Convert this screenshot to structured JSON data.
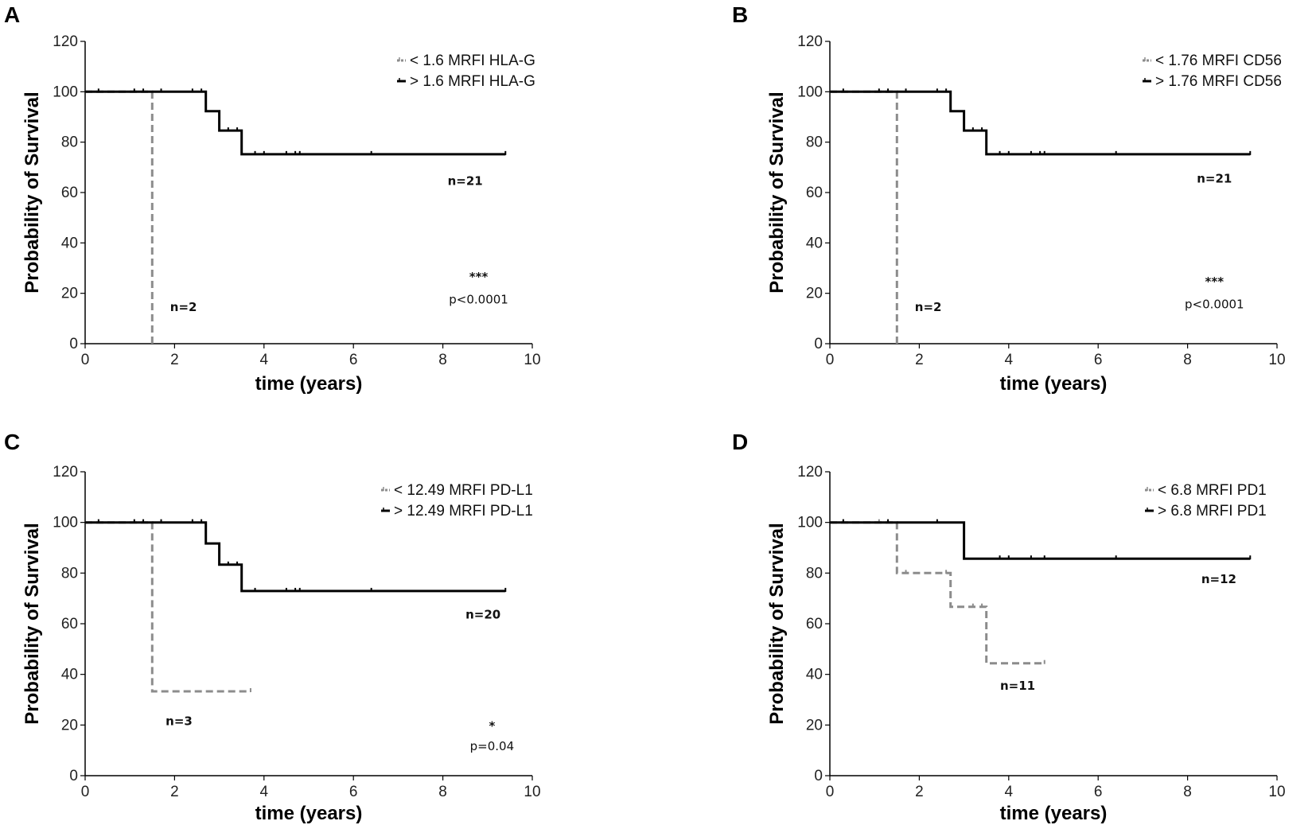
{
  "chart_data": [
    {
      "panel": "A",
      "type": "line",
      "subtype": "kaplan-meier",
      "xlabel": "time (years)",
      "ylabel": "Probability of Survival",
      "xlim": [
        0,
        10
      ],
      "ylim": [
        0,
        120
      ],
      "xticks": [
        0,
        2,
        4,
        6,
        8,
        10
      ],
      "yticks": [
        0,
        20,
        40,
        60,
        80,
        100,
        120
      ],
      "legend_position": "top-right",
      "series": [
        {
          "name": "< 1.6 MRFI HLA-G",
          "color": "#8c8c8c",
          "style": "dashed",
          "steps": [
            [
              0,
              100
            ],
            [
              1.5,
              100
            ],
            [
              1.5,
              0
            ]
          ],
          "censors": []
        },
        {
          "name": "> 1.6 MRFI HLA-G",
          "color": "#000000",
          "style": "solid",
          "steps": [
            [
              0,
              100
            ],
            [
              2.7,
              100
            ],
            [
              2.7,
              92.3
            ],
            [
              3.0,
              92.3
            ],
            [
              3.0,
              84.6
            ],
            [
              3.5,
              84.6
            ],
            [
              3.5,
              75.2
            ],
            [
              9.4,
              75.2
            ]
          ],
          "censors": [
            [
              0.3,
              100
            ],
            [
              1.1,
              100
            ],
            [
              1.3,
              100
            ],
            [
              1.7,
              100
            ],
            [
              2.4,
              100
            ],
            [
              2.6,
              100
            ],
            [
              3.2,
              84.6
            ],
            [
              3.4,
              84.6
            ],
            [
              3.8,
              75.2
            ],
            [
              4.0,
              75.2
            ],
            [
              4.5,
              75.2
            ],
            [
              4.7,
              75.2
            ],
            [
              4.8,
              75.2
            ],
            [
              6.4,
              75.2
            ],
            [
              9.4,
              75.2
            ]
          ]
        }
      ],
      "annotations": [
        {
          "kind": "n",
          "text": "n=21",
          "x": 8.5,
          "y": 63
        },
        {
          "kind": "n",
          "text": "n=2",
          "x": 2.2,
          "y": 13
        },
        {
          "kind": "stars",
          "text": "***",
          "x": 8.8,
          "y": 25
        },
        {
          "kind": "p",
          "text": "p<0.0001",
          "x": 8.8,
          "y": 16
        }
      ]
    },
    {
      "panel": "B",
      "type": "line",
      "subtype": "kaplan-meier",
      "xlabel": "time (years)",
      "ylabel": "Probability of Survival",
      "xlim": [
        0,
        10
      ],
      "ylim": [
        0,
        120
      ],
      "xticks": [
        0,
        2,
        4,
        6,
        8,
        10
      ],
      "yticks": [
        0,
        20,
        40,
        60,
        80,
        100,
        120
      ],
      "legend_position": "top-right",
      "series": [
        {
          "name": "< 1.76 MRFI CD56",
          "color": "#8c8c8c",
          "style": "dashed",
          "steps": [
            [
              0,
              100
            ],
            [
              1.5,
              100
            ],
            [
              1.5,
              0
            ]
          ],
          "censors": []
        },
        {
          "name": "> 1.76 MRFI CD56",
          "color": "#000000",
          "style": "solid",
          "steps": [
            [
              0,
              100
            ],
            [
              2.7,
              100
            ],
            [
              2.7,
              92.3
            ],
            [
              3.0,
              92.3
            ],
            [
              3.0,
              84.6
            ],
            [
              3.5,
              84.6
            ],
            [
              3.5,
              75.2
            ],
            [
              9.4,
              75.2
            ]
          ],
          "censors": [
            [
              0.3,
              100
            ],
            [
              1.1,
              100
            ],
            [
              1.3,
              100
            ],
            [
              1.7,
              100
            ],
            [
              2.4,
              100
            ],
            [
              2.6,
              100
            ],
            [
              3.2,
              84.6
            ],
            [
              3.4,
              84.6
            ],
            [
              3.8,
              75.2
            ],
            [
              4.0,
              75.2
            ],
            [
              4.5,
              75.2
            ],
            [
              4.7,
              75.2
            ],
            [
              4.8,
              75.2
            ],
            [
              6.4,
              75.2
            ],
            [
              9.4,
              75.2
            ]
          ]
        }
      ],
      "annotations": [
        {
          "kind": "n",
          "text": "n=21",
          "x": 8.6,
          "y": 64
        },
        {
          "kind": "n",
          "text": "n=2",
          "x": 2.2,
          "y": 13
        },
        {
          "kind": "stars",
          "text": "***",
          "x": 8.6,
          "y": 23
        },
        {
          "kind": "p",
          "text": "p<0.0001",
          "x": 8.6,
          "y": 14
        }
      ]
    },
    {
      "panel": "C",
      "type": "line",
      "subtype": "kaplan-meier",
      "xlabel": "time (years)",
      "ylabel": "Probability of Survival",
      "xlim": [
        0,
        10
      ],
      "ylim": [
        0,
        120
      ],
      "xticks": [
        0,
        2,
        4,
        6,
        8,
        10
      ],
      "yticks": [
        0,
        20,
        40,
        60,
        80,
        100,
        120
      ],
      "legend_position": "top-right",
      "series": [
        {
          "name": "< 12.49 MRFI PD-L1",
          "color": "#8c8c8c",
          "style": "dashed",
          "steps": [
            [
              0,
              100
            ],
            [
              1.5,
              100
            ],
            [
              1.5,
              33.3
            ],
            [
              3.7,
              33.3
            ]
          ],
          "censors": [
            [
              3.7,
              33.3
            ]
          ]
        },
        {
          "name": "> 12.49 MRFI PD-L1",
          "color": "#000000",
          "style": "solid",
          "steps": [
            [
              0,
              100
            ],
            [
              2.7,
              100
            ],
            [
              2.7,
              91.7
            ],
            [
              3.0,
              91.7
            ],
            [
              3.0,
              83.3
            ],
            [
              3.5,
              83.3
            ],
            [
              3.5,
              72.9
            ],
            [
              9.4,
              72.9
            ]
          ],
          "censors": [
            [
              0.3,
              100
            ],
            [
              1.1,
              100
            ],
            [
              1.3,
              100
            ],
            [
              1.7,
              100
            ],
            [
              2.4,
              100
            ],
            [
              2.6,
              100
            ],
            [
              3.2,
              83.3
            ],
            [
              3.4,
              83.3
            ],
            [
              3.8,
              72.9
            ],
            [
              4.5,
              72.9
            ],
            [
              4.7,
              72.9
            ],
            [
              4.8,
              72.9
            ],
            [
              6.4,
              72.9
            ],
            [
              9.4,
              72.9
            ]
          ]
        }
      ],
      "annotations": [
        {
          "kind": "n",
          "text": "n=20",
          "x": 8.9,
          "y": 62
        },
        {
          "kind": "n",
          "text": "n=3",
          "x": 2.1,
          "y": 20
        },
        {
          "kind": "stars",
          "text": "*",
          "x": 9.1,
          "y": 18
        },
        {
          "kind": "p",
          "text": "p=0.04",
          "x": 9.1,
          "y": 10
        }
      ]
    },
    {
      "panel": "D",
      "type": "line",
      "subtype": "kaplan-meier",
      "xlabel": "time (years)",
      "ylabel": "Probability of Survival",
      "xlim": [
        0,
        10
      ],
      "ylim": [
        0,
        120
      ],
      "xticks": [
        0,
        2,
        4,
        6,
        8,
        10
      ],
      "yticks": [
        0,
        20,
        40,
        60,
        80,
        100,
        120
      ],
      "legend_position": "top-right",
      "series": [
        {
          "name": "< 6.8 MRFI PD1",
          "color": "#8c8c8c",
          "style": "dashed",
          "steps": [
            [
              0,
              100
            ],
            [
              1.5,
              100
            ],
            [
              1.5,
              80
            ],
            [
              2.7,
              80
            ],
            [
              2.7,
              66.7
            ],
            [
              3.5,
              66.7
            ],
            [
              3.5,
              44.4
            ],
            [
              4.8,
              44.4
            ]
          ],
          "censors": [
            [
              0.3,
              100
            ],
            [
              1.1,
              100
            ],
            [
              1.7,
              80
            ],
            [
              2.6,
              80
            ],
            [
              3.2,
              66.7
            ],
            [
              3.4,
              66.7
            ],
            [
              4.8,
              44.4
            ]
          ]
        },
        {
          "name": "> 6.8 MRFI PD1",
          "color": "#000000",
          "style": "solid",
          "steps": [
            [
              0,
              100
            ],
            [
              3.0,
              100
            ],
            [
              3.0,
              85.7
            ],
            [
              9.4,
              85.7
            ]
          ],
          "censors": [
            [
              0.3,
              100
            ],
            [
              1.3,
              100
            ],
            [
              2.4,
              100
            ],
            [
              3.8,
              85.7
            ],
            [
              4.0,
              85.7
            ],
            [
              4.5,
              85.7
            ],
            [
              4.8,
              85.7
            ],
            [
              6.4,
              85.7
            ],
            [
              9.4,
              85.7
            ]
          ]
        }
      ],
      "annotations": [
        {
          "kind": "n",
          "text": "n=12",
          "x": 8.7,
          "y": 76
        },
        {
          "kind": "n",
          "text": "n=11",
          "x": 4.2,
          "y": 34
        }
      ]
    }
  ]
}
